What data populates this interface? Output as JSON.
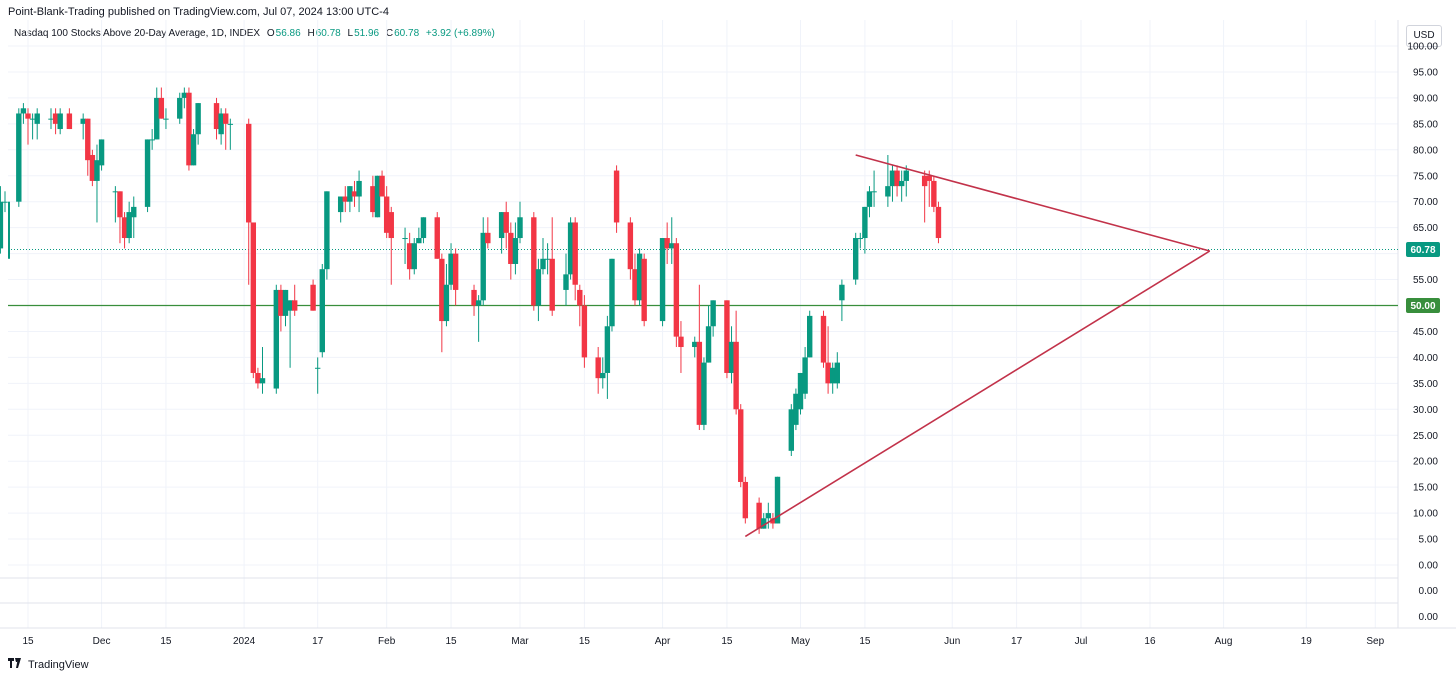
{
  "header": {
    "published": "Point-Blank-Trading published on TradingView.com, Jul 07, 2024 13:00 UTC-4"
  },
  "legend": {
    "name": "Nasdaq 100 Stocks Above 20-Day Average, 1D, INDEX",
    "open_label": "O",
    "open": "56.86",
    "high_label": "H",
    "high": "60.78",
    "low_label": "L",
    "low": "51.96",
    "close_label": "C",
    "close": "60.78",
    "change": "+3.92 (+6.89%)"
  },
  "currency": "USD",
  "footer": {
    "brand": "TradingView",
    "logo_icon": "tradingview-logo-icon"
  },
  "colors": {
    "up": "#089981",
    "down": "#f23645",
    "trendline": "#c2324a",
    "level": "#388e3c",
    "last": "#089981"
  },
  "chart_data": {
    "type": "candlestick",
    "y_ticks": [
      "100.00",
      "95.00",
      "90.00",
      "85.00",
      "80.00",
      "75.00",
      "70.00",
      "65.00",
      "60.00",
      "55.00",
      "50.00",
      "45.00",
      "40.00",
      "35.00",
      "30.00",
      "25.00",
      "20.00",
      "15.00",
      "10.00",
      "5.00",
      "0.00"
    ],
    "ylim": [
      0,
      100
    ],
    "lower_pane_ticks": [
      "0.00",
      "0.00"
    ],
    "x_ticks": [
      {
        "label": "15",
        "date": "2023-11-15"
      },
      {
        "label": "Dec",
        "date": "2023-12-01"
      },
      {
        "label": "15",
        "date": "2023-12-15"
      },
      {
        "label": "2024",
        "date": "2024-01-01"
      },
      {
        "label": "17",
        "date": "2024-01-17"
      },
      {
        "label": "Feb",
        "date": "2024-02-01"
      },
      {
        "label": "15",
        "date": "2024-02-15"
      },
      {
        "label": "Mar",
        "date": "2024-03-01"
      },
      {
        "label": "15",
        "date": "2024-03-15"
      },
      {
        "label": "Apr",
        "date": "2024-04-01"
      },
      {
        "label": "15",
        "date": "2024-04-15"
      },
      {
        "label": "May",
        "date": "2024-05-01"
      },
      {
        "label": "15",
        "date": "2024-05-15"
      },
      {
        "label": "Jun",
        "date": "2024-06-03"
      },
      {
        "label": "17",
        "date": "2024-06-17"
      },
      {
        "label": "Jul",
        "date": "2024-07-01"
      },
      {
        "label": "16",
        "date": "2024-07-16"
      },
      {
        "label": "Aug",
        "date": "2024-08-01"
      },
      {
        "label": "19",
        "date": "2024-08-19"
      },
      {
        "label": "Sep",
        "date": "2024-09-03"
      }
    ],
    "last_price": {
      "value": 60.78,
      "label": "60.78"
    },
    "horizontal_level": {
      "value": 50,
      "label": "50.00"
    },
    "trendlines": [
      {
        "from": {
          "date": "2024-05-13",
          "value": 79
        },
        "to": {
          "date": "2024-07-29",
          "value": 60.5
        }
      },
      {
        "from": {
          "date": "2024-04-19",
          "value": 5.5
        },
        "to": {
          "date": "2024-07-29",
          "value": 60.5
        }
      }
    ],
    "candles": [
      {
        "date": "2023-11-09",
        "o": 61,
        "h": 73,
        "l": 60,
        "c": 70
      },
      {
        "date": "2023-11-10",
        "o": 70,
        "h": 72,
        "l": 68,
        "c": 70
      },
      {
        "date": "2023-11-13",
        "o": 70,
        "h": 88,
        "l": 69,
        "c": 87
      },
      {
        "date": "2023-11-14",
        "o": 87,
        "h": 89,
        "l": 85,
        "c": 88
      },
      {
        "date": "2023-11-15",
        "o": 87,
        "h": 88,
        "l": 81,
        "c": 86
      },
      {
        "date": "2023-11-16",
        "o": 86,
        "h": 87,
        "l": 82,
        "c": 86
      },
      {
        "date": "2023-11-17",
        "o": 85,
        "h": 88,
        "l": 82,
        "c": 87
      },
      {
        "date": "2023-11-20",
        "o": 86,
        "h": 88,
        "l": 84,
        "c": 86
      },
      {
        "date": "2023-11-21",
        "o": 87,
        "h": 88,
        "l": 83,
        "c": 85
      },
      {
        "date": "2023-11-22",
        "o": 84,
        "h": 88,
        "l": 83,
        "c": 87
      },
      {
        "date": "2023-11-24",
        "o": 87,
        "h": 88,
        "l": 84,
        "c": 84
      },
      {
        "date": "2023-11-27",
        "o": 85,
        "h": 87,
        "l": 82,
        "c": 86
      },
      {
        "date": "2023-11-28",
        "o": 86,
        "h": 86,
        "l": 75,
        "c": 78
      },
      {
        "date": "2023-11-29",
        "o": 79,
        "h": 80,
        "l": 73,
        "c": 74
      },
      {
        "date": "2023-11-30",
        "o": 74,
        "h": 81,
        "l": 66,
        "c": 78
      },
      {
        "date": "2023-12-01",
        "o": 77,
        "h": 82,
        "l": 76,
        "c": 82
      },
      {
        "date": "2023-12-04",
        "o": 72,
        "h": 73,
        "l": 66,
        "c": 72
      },
      {
        "date": "2023-12-05",
        "o": 72,
        "h": 72,
        "l": 62,
        "c": 67
      },
      {
        "date": "2023-12-06",
        "o": 67,
        "h": 68,
        "l": 61,
        "c": 63
      },
      {
        "date": "2023-12-07",
        "o": 63,
        "h": 70,
        "l": 62,
        "c": 68
      },
      {
        "date": "2023-12-08",
        "o": 67,
        "h": 71,
        "l": 63,
        "c": 69
      },
      {
        "date": "2023-12-11",
        "o": 69,
        "h": 82,
        "l": 68,
        "c": 82
      },
      {
        "date": "2023-12-12",
        "o": 82,
        "h": 84,
        "l": 80,
        "c": 82
      },
      {
        "date": "2023-12-13",
        "o": 82,
        "h": 92,
        "l": 82,
        "c": 90
      },
      {
        "date": "2023-12-14",
        "o": 90,
        "h": 92,
        "l": 86,
        "c": 86
      },
      {
        "date": "2023-12-15",
        "o": 86,
        "h": 88,
        "l": 84,
        "c": 86
      },
      {
        "date": "2023-12-18",
        "o": 86,
        "h": 91,
        "l": 85,
        "c": 90
      },
      {
        "date": "2023-12-19",
        "o": 90,
        "h": 92,
        "l": 88,
        "c": 91
      },
      {
        "date": "2023-12-20",
        "o": 91,
        "h": 92,
        "l": 76,
        "c": 77
      },
      {
        "date": "2023-12-21",
        "o": 77,
        "h": 84,
        "l": 77,
        "c": 83
      },
      {
        "date": "2023-12-22",
        "o": 83,
        "h": 89,
        "l": 81,
        "c": 89
      },
      {
        "date": "2023-12-26",
        "o": 89,
        "h": 90,
        "l": 82,
        "c": 84
      },
      {
        "date": "2023-12-27",
        "o": 83,
        "h": 88,
        "l": 81,
        "c": 87
      },
      {
        "date": "2023-12-28",
        "o": 87,
        "h": 88,
        "l": 80,
        "c": 85
      },
      {
        "date": "2023-12-29",
        "o": 85,
        "h": 86,
        "l": 80,
        "c": 85
      },
      {
        "date": "2024-01-02",
        "o": 85,
        "h": 86,
        "l": 54,
        "c": 66
      },
      {
        "date": "2024-01-03",
        "o": 66,
        "h": 66,
        "l": 36,
        "c": 37
      },
      {
        "date": "2024-01-04",
        "o": 37,
        "h": 38,
        "l": 34,
        "c": 35
      },
      {
        "date": "2024-01-05",
        "o": 35,
        "h": 42,
        "l": 33,
        "c": 36
      },
      {
        "date": "2024-01-08",
        "o": 34,
        "h": 54,
        "l": 33,
        "c": 53
      },
      {
        "date": "2024-01-09",
        "o": 53,
        "h": 54,
        "l": 45,
        "c": 48
      },
      {
        "date": "2024-01-10",
        "o": 48,
        "h": 53,
        "l": 46,
        "c": 53
      },
      {
        "date": "2024-01-11",
        "o": 49,
        "h": 51,
        "l": 38,
        "c": 51
      },
      {
        "date": "2024-01-12",
        "o": 51,
        "h": 54,
        "l": 48,
        "c": 49
      },
      {
        "date": "2024-01-16",
        "o": 54,
        "h": 55,
        "l": 49,
        "c": 49
      },
      {
        "date": "2024-01-17",
        "o": 38,
        "h": 40,
        "l": 33,
        "c": 38
      },
      {
        "date": "2024-01-18",
        "o": 41,
        "h": 58,
        "l": 40,
        "c": 57
      },
      {
        "date": "2024-01-19",
        "o": 57,
        "h": 72,
        "l": 55,
        "c": 72
      },
      {
        "date": "2024-01-22",
        "o": 68,
        "h": 71,
        "l": 66,
        "c": 71
      },
      {
        "date": "2024-01-23",
        "o": 71,
        "h": 73,
        "l": 68,
        "c": 70
      },
      {
        "date": "2024-01-24",
        "o": 70,
        "h": 73,
        "l": 68,
        "c": 73
      },
      {
        "date": "2024-01-25",
        "o": 72,
        "h": 74,
        "l": 69,
        "c": 71
      },
      {
        "date": "2024-01-26",
        "o": 71,
        "h": 76,
        "l": 68,
        "c": 74
      },
      {
        "date": "2024-01-29",
        "o": 73,
        "h": 75,
        "l": 67,
        "c": 68
      },
      {
        "date": "2024-01-30",
        "o": 67,
        "h": 75,
        "l": 67,
        "c": 75
      },
      {
        "date": "2024-01-31",
        "o": 75,
        "h": 76,
        "l": 71,
        "c": 71
      },
      {
        "date": "2024-02-01",
        "o": 71,
        "h": 73,
        "l": 63,
        "c": 64
      },
      {
        "date": "2024-02-02",
        "o": 68,
        "h": 69,
        "l": 54,
        "c": 63
      },
      {
        "date": "2024-02-05",
        "o": 63,
        "h": 65,
        "l": 58,
        "c": 63
      },
      {
        "date": "2024-02-06",
        "o": 62,
        "h": 64,
        "l": 55,
        "c": 57
      },
      {
        "date": "2024-02-07",
        "o": 57,
        "h": 63,
        "l": 56,
        "c": 62
      },
      {
        "date": "2024-02-08",
        "o": 62,
        "h": 65,
        "l": 62,
        "c": 63
      },
      {
        "date": "2024-02-09",
        "o": 63,
        "h": 67,
        "l": 62,
        "c": 67
      },
      {
        "date": "2024-02-12",
        "o": 67,
        "h": 68,
        "l": 59,
        "c": 59
      },
      {
        "date": "2024-02-13",
        "o": 59,
        "h": 60,
        "l": 41,
        "c": 47
      },
      {
        "date": "2024-02-14",
        "o": 47,
        "h": 58,
        "l": 46,
        "c": 54
      },
      {
        "date": "2024-02-15",
        "o": 54,
        "h": 62,
        "l": 53,
        "c": 60
      },
      {
        "date": "2024-02-16",
        "o": 60,
        "h": 61,
        "l": 50,
        "c": 53
      },
      {
        "date": "2024-02-20",
        "o": 53,
        "h": 54,
        "l": 48,
        "c": 50
      },
      {
        "date": "2024-02-21",
        "o": 50,
        "h": 52,
        "l": 43,
        "c": 51
      },
      {
        "date": "2024-02-22",
        "o": 51,
        "h": 67,
        "l": 50,
        "c": 64
      },
      {
        "date": "2024-02-23",
        "o": 64,
        "h": 67,
        "l": 61,
        "c": 62
      },
      {
        "date": "2024-02-26",
        "o": 63,
        "h": 68,
        "l": 60,
        "c": 68
      },
      {
        "date": "2024-02-27",
        "o": 68,
        "h": 70,
        "l": 61,
        "c": 64
      },
      {
        "date": "2024-02-28",
        "o": 64,
        "h": 66,
        "l": 55,
        "c": 58
      },
      {
        "date": "2024-02-29",
        "o": 58,
        "h": 66,
        "l": 56,
        "c": 63
      },
      {
        "date": "2024-03-01",
        "o": 63,
        "h": 70,
        "l": 62,
        "c": 67
      },
      {
        "date": "2024-03-04",
        "o": 67,
        "h": 68,
        "l": 49,
        "c": 50
      },
      {
        "date": "2024-03-05",
        "o": 50,
        "h": 59,
        "l": 47,
        "c": 57
      },
      {
        "date": "2024-03-06",
        "o": 57,
        "h": 63,
        "l": 56,
        "c": 59
      },
      {
        "date": "2024-03-07",
        "o": 59,
        "h": 62,
        "l": 56,
        "c": 59
      },
      {
        "date": "2024-03-08",
        "o": 59,
        "h": 67,
        "l": 48,
        "c": 49
      },
      {
        "date": "2024-03-11",
        "o": 53,
        "h": 60,
        "l": 50,
        "c": 56
      },
      {
        "date": "2024-03-12",
        "o": 56,
        "h": 67,
        "l": 55,
        "c": 66
      },
      {
        "date": "2024-03-13",
        "o": 66,
        "h": 67,
        "l": 51,
        "c": 54
      },
      {
        "date": "2024-03-14",
        "o": 53,
        "h": 54,
        "l": 46,
        "c": 50
      },
      {
        "date": "2024-03-15",
        "o": 50,
        "h": 52,
        "l": 38,
        "c": 40
      },
      {
        "date": "2024-03-18",
        "o": 40,
        "h": 42,
        "l": 33,
        "c": 36
      },
      {
        "date": "2024-03-19",
        "o": 36,
        "h": 40,
        "l": 34,
        "c": 37
      },
      {
        "date": "2024-03-20",
        "o": 37,
        "h": 48,
        "l": 32,
        "c": 46
      },
      {
        "date": "2024-03-21",
        "o": 46,
        "h": 59,
        "l": 45,
        "c": 59
      },
      {
        "date": "2024-03-22",
        "o": 76,
        "h": 77,
        "l": 64,
        "c": 66
      },
      {
        "date": "2024-03-25",
        "o": 66,
        "h": 67,
        "l": 55,
        "c": 57
      },
      {
        "date": "2024-03-26",
        "o": 57,
        "h": 60,
        "l": 50,
        "c": 51
      },
      {
        "date": "2024-03-27",
        "o": 51,
        "h": 61,
        "l": 50,
        "c": 60
      },
      {
        "date": "2024-03-28",
        "o": 59,
        "h": 60,
        "l": 46,
        "c": 47
      },
      {
        "date": "2024-04-01",
        "o": 47,
        "h": 63,
        "l": 46,
        "c": 63
      },
      {
        "date": "2024-04-02",
        "o": 63,
        "h": 66,
        "l": 58,
        "c": 61
      },
      {
        "date": "2024-04-03",
        "o": 61,
        "h": 67,
        "l": 58,
        "c": 62
      },
      {
        "date": "2024-04-04",
        "o": 62,
        "h": 63,
        "l": 42,
        "c": 44
      },
      {
        "date": "2024-04-05",
        "o": 44,
        "h": 47,
        "l": 37,
        "c": 42
      },
      {
        "date": "2024-04-08",
        "o": 42,
        "h": 44,
        "l": 40,
        "c": 43
      },
      {
        "date": "2024-04-09",
        "o": 43,
        "h": 54,
        "l": 26,
        "c": 27
      },
      {
        "date": "2024-04-10",
        "o": 27,
        "h": 40,
        "l": 26,
        "c": 39
      },
      {
        "date": "2024-04-11",
        "o": 39,
        "h": 50,
        "l": 39,
        "c": 46
      },
      {
        "date": "2024-04-12",
        "o": 46,
        "h": 51,
        "l": 44,
        "c": 51
      },
      {
        "date": "2024-04-15",
        "o": 51,
        "h": 51,
        "l": 36,
        "c": 37
      },
      {
        "date": "2024-04-16",
        "o": 37,
        "h": 46,
        "l": 35,
        "c": 43
      },
      {
        "date": "2024-04-17",
        "o": 43,
        "h": 49,
        "l": 29,
        "c": 30
      },
      {
        "date": "2024-04-18",
        "o": 30,
        "h": 31,
        "l": 15,
        "c": 16
      },
      {
        "date": "2024-04-19",
        "o": 16,
        "h": 17,
        "l": 8,
        "c": 9
      },
      {
        "date": "2024-04-22",
        "o": 12,
        "h": 13,
        "l": 6,
        "c": 7
      },
      {
        "date": "2024-04-23",
        "o": 7,
        "h": 10,
        "l": 7,
        "c": 9
      },
      {
        "date": "2024-04-24",
        "o": 9,
        "h": 12,
        "l": 7,
        "c": 10
      },
      {
        "date": "2024-04-25",
        "o": 9,
        "h": 10,
        "l": 7,
        "c": 8
      },
      {
        "date": "2024-04-26",
        "o": 8,
        "h": 17,
        "l": 8,
        "c": 17
      },
      {
        "date": "2024-04-29",
        "o": 22,
        "h": 31,
        "l": 21,
        "c": 30
      },
      {
        "date": "2024-04-30",
        "o": 27,
        "h": 34,
        "l": 26,
        "c": 33
      },
      {
        "date": "2024-05-01",
        "o": 30,
        "h": 37,
        "l": 29,
        "c": 37
      },
      {
        "date": "2024-05-02",
        "o": 33,
        "h": 42,
        "l": 32,
        "c": 40
      },
      {
        "date": "2024-05-03",
        "o": 40,
        "h": 49,
        "l": 40,
        "c": 48
      },
      {
        "date": "2024-05-06",
        "o": 48,
        "h": 49,
        "l": 38,
        "c": 39
      },
      {
        "date": "2024-05-07",
        "o": 39,
        "h": 46,
        "l": 33,
        "c": 35
      },
      {
        "date": "2024-05-08",
        "o": 35,
        "h": 39,
        "l": 33,
        "c": 38
      },
      {
        "date": "2024-05-09",
        "o": 35,
        "h": 41,
        "l": 34,
        "c": 39
      },
      {
        "date": "2024-05-10",
        "o": 51,
        "h": 55,
        "l": 47,
        "c": 54
      },
      {
        "date": "2024-05-13",
        "o": 55,
        "h": 64,
        "l": 54,
        "c": 63
      },
      {
        "date": "2024-05-14",
        "o": 63,
        "h": 64,
        "l": 61,
        "c": 63
      },
      {
        "date": "2024-05-15",
        "o": 63,
        "h": 69,
        "l": 60,
        "c": 69
      },
      {
        "date": "2024-05-16",
        "o": 69,
        "h": 73,
        "l": 67,
        "c": 72
      },
      {
        "date": "2024-05-17",
        "o": 72,
        "h": 76,
        "l": 69,
        "c": 72
      },
      {
        "date": "2024-05-20",
        "o": 71,
        "h": 79,
        "l": 69,
        "c": 73
      },
      {
        "date": "2024-05-21",
        "o": 73,
        "h": 77,
        "l": 70,
        "c": 76
      },
      {
        "date": "2024-05-22",
        "o": 76,
        "h": 77,
        "l": 71,
        "c": 73
      },
      {
        "date": "2024-05-23",
        "o": 73,
        "h": 76,
        "l": 70,
        "c": 74
      },
      {
        "date": "2024-05-24",
        "o": 74,
        "h": 77,
        "l": 71,
        "c": 76
      },
      {
        "date": "2024-05-28",
        "o": 75,
        "h": 76,
        "l": 66,
        "c": 73
      },
      {
        "date": "2024-05-29",
        "o": 75,
        "h": 76,
        "l": 69,
        "c": 74
      },
      {
        "date": "2024-05-30",
        "o": 74,
        "h": 75,
        "l": 68,
        "c": 69
      },
      {
        "date": "2024-05-31",
        "o": 69,
        "h": 70,
        "l": 62,
        "c": 63
      }
    ]
  }
}
